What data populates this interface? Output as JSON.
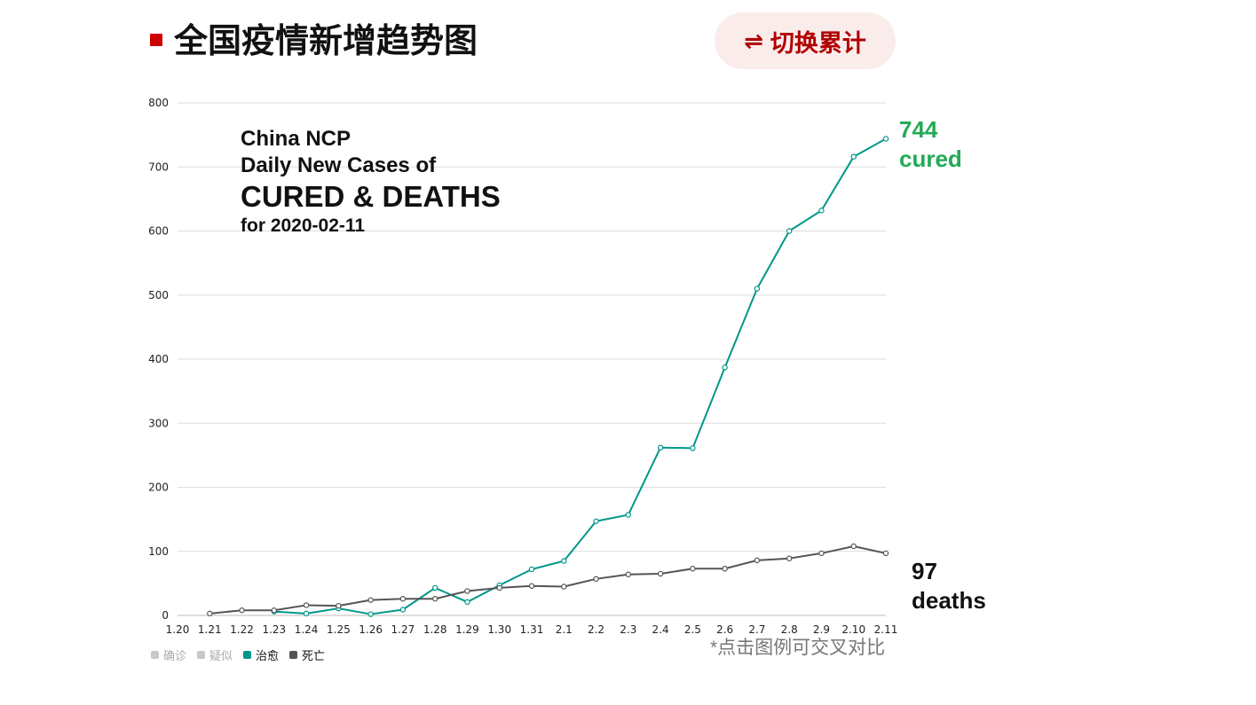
{
  "header": {
    "title": "全国疫情新增趋势图",
    "toggle_icon": "⇌",
    "toggle_label": "切换累计"
  },
  "overlay": {
    "line1": "China NCP",
    "line2": "Daily New Cases of",
    "line3": "CURED & DEATHS",
    "line4": "for 2020-02-11"
  },
  "annotations": {
    "cured_value": "744",
    "cured_label": "cured",
    "deaths_value": "97",
    "deaths_label": "deaths"
  },
  "legend": [
    {
      "label": "确诊",
      "color": "#c8c8c8",
      "active": false
    },
    {
      "label": "疑似",
      "color": "#c8c8c8",
      "active": false
    },
    {
      "label": "治愈",
      "color": "#00968a",
      "active": true
    },
    {
      "label": "死亡",
      "color": "#555555",
      "active": true
    }
  ],
  "note": "*点击图例可交叉对比",
  "chart_data": {
    "type": "line",
    "categories": [
      "1.20",
      "1.21",
      "1.22",
      "1.23",
      "1.24",
      "1.25",
      "1.26",
      "1.27",
      "1.28",
      "1.29",
      "1.30",
      "1.31",
      "2.1",
      "2.2",
      "2.3",
      "2.4",
      "2.5",
      "2.6",
      "2.7",
      "2.8",
      "2.9",
      "2.10",
      "2.11"
    ],
    "ylim": [
      0,
      800
    ],
    "yticks": [
      0,
      100,
      200,
      300,
      400,
      500,
      600,
      700,
      800
    ],
    "grid": true,
    "legend_position": "bottom-left",
    "series": [
      {
        "name": "治愈",
        "color": "#00968a",
        "values": [
          null,
          null,
          null,
          6,
          3,
          11,
          2,
          9,
          43,
          21,
          47,
          72,
          85,
          147,
          157,
          262,
          261,
          387,
          510,
          600,
          632,
          716,
          744
        ]
      },
      {
        "name": "死亡",
        "color": "#555555",
        "values": [
          null,
          3,
          8,
          8,
          16,
          15,
          24,
          26,
          26,
          38,
          43,
          46,
          45,
          57,
          64,
          65,
          73,
          73,
          86,
          89,
          97,
          108,
          97
        ]
      }
    ]
  }
}
